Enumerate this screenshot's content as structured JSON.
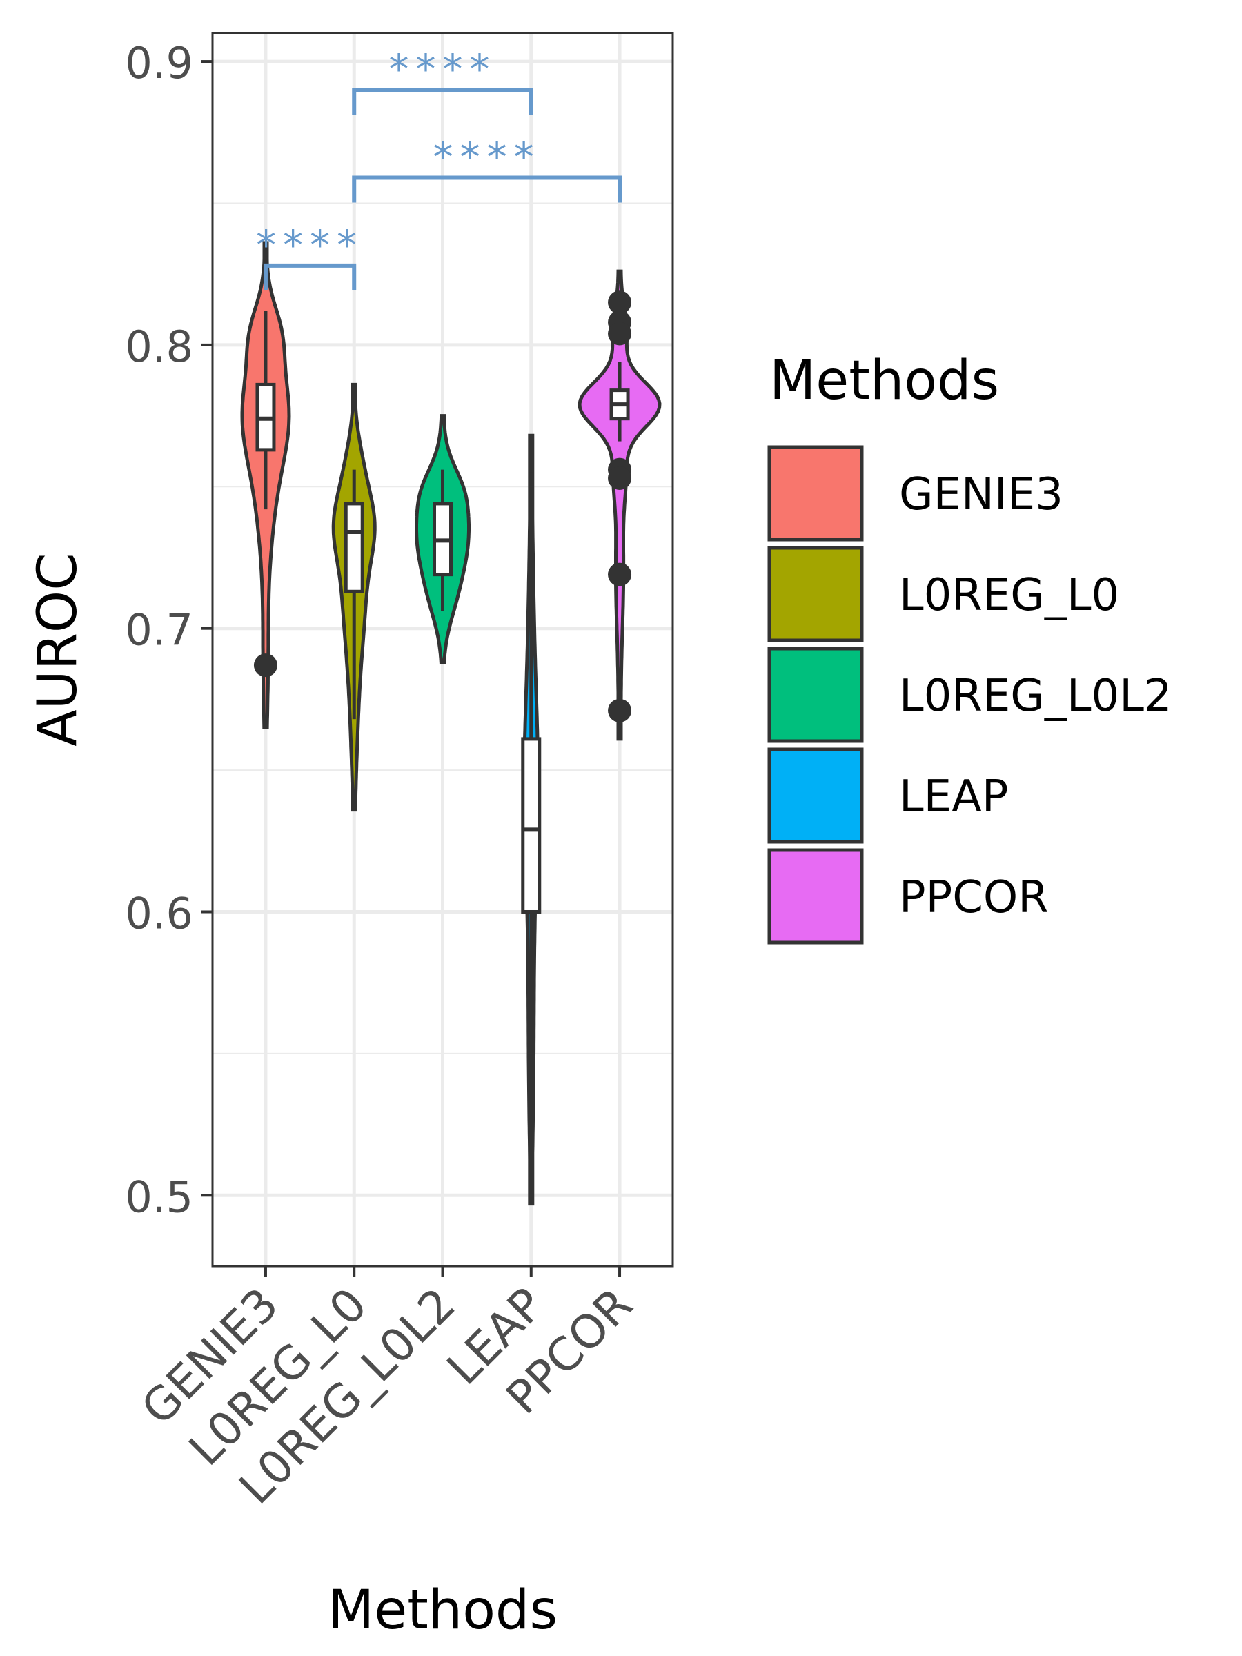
{
  "chart_data": {
    "type": "violin",
    "title": "",
    "xlabel": "Methods",
    "ylabel": "AUROC",
    "ylim": [
      0.475,
      0.91
    ],
    "y_ticks": [
      0.5,
      0.6,
      0.7,
      0.8,
      0.9
    ],
    "y_tick_labels": [
      "0.5",
      "0.6",
      "0.7",
      "0.8",
      "0.9"
    ],
    "grid": true,
    "categories": [
      "GENIE3",
      "L0REG_L0",
      "L0REG_L0L2",
      "LEAP",
      "PPCOR"
    ],
    "legend": {
      "title": "Methods",
      "position": "right",
      "items": [
        {
          "label": "GENIE3",
          "color": "#F8766D"
        },
        {
          "label": "L0REG_L0",
          "color": "#A3A500"
        },
        {
          "label": "L0REG_L0L2",
          "color": "#00BF7D"
        },
        {
          "label": "LEAP",
          "color": "#00B0F6"
        },
        {
          "label": "PPCOR",
          "color": "#E76BF3"
        }
      ]
    },
    "series": [
      {
        "category": "GENIE3",
        "color": "#F8766D",
        "violin_range": [
          0.665,
          0.836
        ],
        "box": {
          "q1": 0.763,
          "median": 0.774,
          "q3": 0.786,
          "whisker_low": 0.742,
          "whisker_high": 0.812
        },
        "outliers": [
          0.687
        ]
      },
      {
        "category": "L0REG_L0",
        "color": "#A3A500",
        "violin_range": [
          0.636,
          0.786
        ],
        "box": {
          "q1": 0.713,
          "median": 0.734,
          "q3": 0.744,
          "whisker_low": 0.668,
          "whisker_high": 0.756
        },
        "outliers": []
      },
      {
        "category": "L0REG_L0L2",
        "color": "#00BF7D",
        "violin_range": [
          0.688,
          0.775
        ],
        "box": {
          "q1": 0.719,
          "median": 0.731,
          "q3": 0.744,
          "whisker_low": 0.706,
          "whisker_high": 0.756
        },
        "outliers": []
      },
      {
        "category": "LEAP",
        "color": "#00B0F6",
        "violin_range": [
          0.497,
          0.768
        ],
        "box": {
          "q1": 0.6,
          "median": 0.629,
          "q3": 0.661,
          "whisker_low": 0.51,
          "whisker_high": 0.755
        },
        "outliers": []
      },
      {
        "category": "PPCOR",
        "color": "#E76BF3",
        "violin_range": [
          0.661,
          0.826
        ],
        "box": {
          "q1": 0.774,
          "median": 0.779,
          "q3": 0.784,
          "whisker_low": 0.766,
          "whisker_high": 0.794
        },
        "outliers": [
          0.815,
          0.808,
          0.804,
          0.756,
          0.753,
          0.719,
          0.671
        ]
      }
    ],
    "significance_color": "#6699CC",
    "comparisons": [
      {
        "from": "GENIE3",
        "to": "L0REG_L0",
        "y": 0.828,
        "label": "****"
      },
      {
        "from": "L0REG_L0",
        "to": "PPCOR",
        "y": 0.859,
        "label": "****"
      },
      {
        "from": "L0REG_L0",
        "to": "LEAP",
        "y": 0.89,
        "label": "****"
      }
    ]
  }
}
